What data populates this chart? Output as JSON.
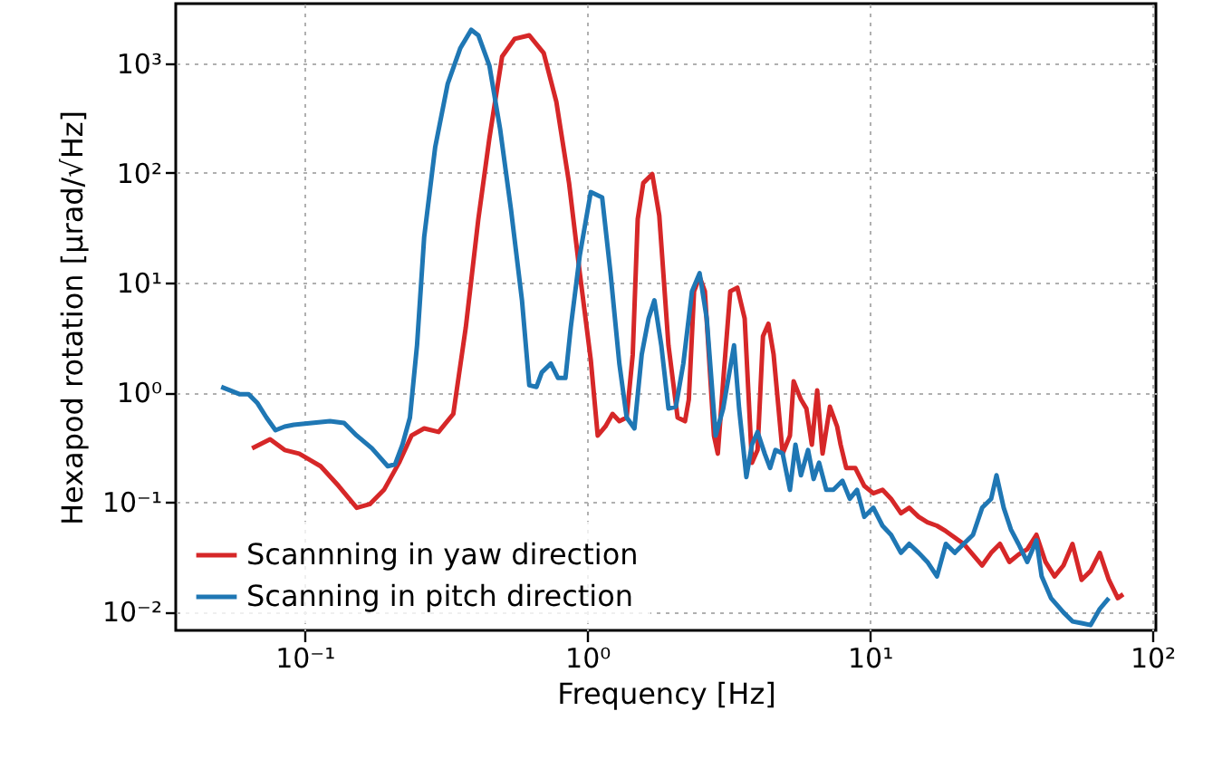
{
  "chart_data": {
    "type": "line",
    "xlabel": "Frequency [Hz]",
    "ylabel": "Hexapod rotation [µrad/√Hz]",
    "log": "xy",
    "grid": true,
    "legend": "bottom left",
    "line_style": "solid",
    "marker": "none",
    "xlim": [
      0.035,
      103
    ],
    "ylim": [
      0.00675,
      3500
    ],
    "xticks": [
      {
        "value": 0.1,
        "label": "10⁻¹"
      },
      {
        "value": 1,
        "label": "10⁰"
      },
      {
        "value": 10,
        "label": "10¹"
      },
      {
        "value": 100,
        "label": "10²"
      }
    ],
    "yticks": [
      {
        "value": 0.01,
        "label": "10⁻²"
      },
      {
        "value": 0.1,
        "label": "10⁻¹"
      },
      {
        "value": 1,
        "label": "10⁰"
      },
      {
        "value": 10,
        "label": "10¹"
      },
      {
        "value": 100,
        "label": "10²"
      },
      {
        "value": 1000,
        "label": "10³"
      }
    ],
    "series": [
      {
        "name": "Scannning in yaw direction",
        "color": "#d62728",
        "x": [
          0.0652,
          0.0755,
          0.085,
          0.0957,
          0.114,
          0.132,
          0.153,
          0.17,
          0.191,
          0.216,
          0.239,
          0.265,
          0.298,
          0.336,
          0.372,
          0.412,
          0.451,
          0.5,
          0.554,
          0.624,
          0.702,
          0.778,
          0.863,
          0.942,
          1.03,
          1.09,
          1.16,
          1.23,
          1.3,
          1.38,
          1.45,
          1.51,
          1.58,
          1.7,
          1.8,
          1.94,
          2.09,
          2.22,
          2.29,
          2.39,
          2.5,
          2.61,
          2.81,
          2.9,
          3.03,
          3.21,
          3.4,
          3.61,
          3.83,
          4.01,
          4.19,
          4.38,
          4.57,
          4.92,
          5.22,
          5.38,
          5.71,
          5.97,
          6.24,
          6.52,
          6.81,
          7.23,
          7.67,
          7.89,
          8.26,
          8.89,
          9.57,
          10.3,
          11.1,
          11.9,
          12.9,
          13.8,
          14.9,
          16.0,
          17.3,
          18.6,
          21.5,
          25.0,
          26.9,
          28.9,
          31.2,
          33.6,
          36.1,
          38.9,
          41.9,
          45.1,
          48.5,
          52.2,
          56.2,
          60.5,
          65.2,
          70.2,
          75.5,
          78.9
        ],
        "values": [
          0.309,
          0.373,
          0.298,
          0.276,
          0.212,
          0.14,
          0.0886,
          0.0955,
          0.129,
          0.228,
          0.403,
          0.469,
          0.435,
          0.635,
          3.91,
          37.9,
          208,
          1150,
          1670,
          1800,
          1240,
          445,
          80.9,
          12.2,
          1.98,
          0.403,
          0.487,
          0.635,
          0.545,
          0.589,
          2.21,
          37.9,
          80.9,
          97.7,
          40.9,
          2.68,
          0.589,
          0.545,
          0.86,
          8.34,
          11.3,
          8.34,
          0.403,
          0.276,
          1.26,
          8.34,
          9.0,
          4.72,
          0.228,
          0.298,
          3.24,
          4.22,
          2.21,
          0.276,
          0.403,
          1.26,
          0.86,
          0.711,
          0.333,
          1.04,
          0.276,
          0.739,
          0.487,
          0.333,
          0.204,
          0.204,
          0.14,
          0.12,
          0.129,
          0.107,
          0.0791,
          0.0886,
          0.0733,
          0.0654,
          0.0607,
          0.0542,
          0.0415,
          0.0264,
          0.0344,
          0.0415,
          0.0284,
          0.0331,
          0.0371,
          0.0502,
          0.0284,
          0.021,
          0.0264,
          0.0415,
          0.0195,
          0.0235,
          0.0344,
          0.0195,
          0.0133,
          0.0144
        ]
      },
      {
        "name": "Scanning in pitch direction",
        "color": "#1f77b4",
        "x": [
          0.0507,
          0.0546,
          0.0588,
          0.0633,
          0.0681,
          0.0733,
          0.0789,
          0.085,
          0.0916,
          0.106,
          0.123,
          0.138,
          0.153,
          0.173,
          0.197,
          0.209,
          0.222,
          0.236,
          0.25,
          0.265,
          0.29,
          0.321,
          0.356,
          0.389,
          0.412,
          0.451,
          0.492,
          0.538,
          0.588,
          0.624,
          0.662,
          0.691,
          0.744,
          0.789,
          0.838,
          0.875,
          0.942,
          1.03,
          1.13,
          1.21,
          1.3,
          1.38,
          1.47,
          1.56,
          1.65,
          1.73,
          1.83,
          1.94,
          2.06,
          2.19,
          2.35,
          2.5,
          2.65,
          2.85,
          3.03,
          3.31,
          3.45,
          3.66,
          3.83,
          4.01,
          4.25,
          4.44,
          4.64,
          4.92,
          5.22,
          5.46,
          5.71,
          6.05,
          6.33,
          6.62,
          7.02,
          7.44,
          8.01,
          8.5,
          9.02,
          9.57,
          10.3,
          11.1,
          11.9,
          12.9,
          13.8,
          14.9,
          16.0,
          17.3,
          18.6,
          20.0,
          21.5,
          23.2,
          25.0,
          26.9,
          28.1,
          29.8,
          31.6,
          33.6,
          36.1,
          38.9,
          40.6,
          43.8,
          48.5,
          52.2,
          56.2,
          60.5,
          65.2,
          70.2
        ],
        "values": [
          1.12,
          1.04,
          0.963,
          0.963,
          0.797,
          0.589,
          0.451,
          0.487,
          0.506,
          0.525,
          0.545,
          0.525,
          0.403,
          0.309,
          0.212,
          0.22,
          0.333,
          0.589,
          2.68,
          26.0,
          173,
          650,
          1380,
          2020,
          1800,
          948,
          252,
          45.8,
          6.9,
          1.16,
          1.12,
          1.52,
          1.83,
          1.35,
          1.35,
          3.91,
          17.8,
          66.9,
          59.7,
          12.2,
          1.83,
          0.589,
          0.469,
          2.21,
          4.72,
          6.9,
          2.68,
          0.711,
          0.739,
          1.83,
          8.34,
          12.2,
          4.72,
          0.403,
          0.711,
          2.68,
          0.711,
          0.169,
          0.333,
          0.435,
          0.276,
          0.204,
          0.298,
          0.276,
          0.129,
          0.333,
          0.175,
          0.298,
          0.162,
          0.228,
          0.129,
          0.129,
          0.156,
          0.107,
          0.129,
          0.0733,
          0.0886,
          0.0607,
          0.0502,
          0.0344,
          0.0415,
          0.0344,
          0.0284,
          0.021,
          0.0415,
          0.0344,
          0.0415,
          0.0502,
          0.0886,
          0.107,
          0.175,
          0.0886,
          0.0562,
          0.0415,
          0.0284,
          0.0448,
          0.021,
          0.0133,
          0.00985,
          0.00815,
          0.00785,
          0.00755,
          0.0106,
          0.0133
        ]
      }
    ]
  }
}
